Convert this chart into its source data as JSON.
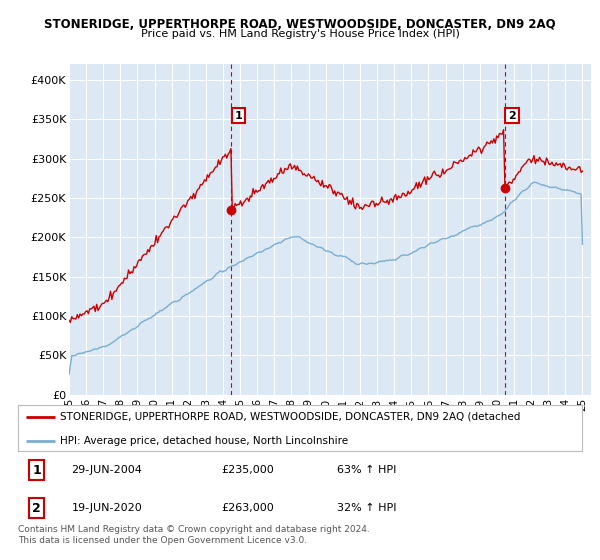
{
  "title": "STONERIDGE, UPPERTHORPE ROAD, WESTWOODSIDE, DONCASTER, DN9 2AQ",
  "subtitle": "Price paid vs. HM Land Registry's House Price Index (HPI)",
  "ylabel_ticks": [
    "£0",
    "£50K",
    "£100K",
    "£150K",
    "£200K",
    "£250K",
    "£300K",
    "£350K",
    "£400K"
  ],
  "ytick_values": [
    0,
    50000,
    100000,
    150000,
    200000,
    250000,
    300000,
    350000,
    400000
  ],
  "ylim": [
    0,
    420000
  ],
  "xlim_start": 1995.0,
  "xlim_end": 2025.5,
  "bg_color": "#ffffff",
  "plot_bg_color": "#dce9f5",
  "grid_color": "#ffffff",
  "red_color": "#cc0000",
  "blue_color": "#7aadce",
  "marker1_x": 2004.49,
  "marker1_y": 235000,
  "marker2_x": 2020.46,
  "marker2_y": 263000,
  "legend_red_label": "STONERIDGE, UPPERTHORPE ROAD, WESTWOODSIDE, DONCASTER, DN9 2AQ (detached",
  "legend_blue_label": "HPI: Average price, detached house, North Lincolnshire",
  "footnote": "Contains HM Land Registry data © Crown copyright and database right 2024.\nThis data is licensed under the Open Government Licence v3.0.",
  "xtick_years": [
    1995,
    1996,
    1997,
    1998,
    1999,
    2000,
    2001,
    2002,
    2003,
    2004,
    2005,
    2006,
    2007,
    2008,
    2009,
    2010,
    2011,
    2012,
    2013,
    2014,
    2015,
    2016,
    2017,
    2018,
    2019,
    2020,
    2021,
    2022,
    2023,
    2024,
    2025
  ]
}
